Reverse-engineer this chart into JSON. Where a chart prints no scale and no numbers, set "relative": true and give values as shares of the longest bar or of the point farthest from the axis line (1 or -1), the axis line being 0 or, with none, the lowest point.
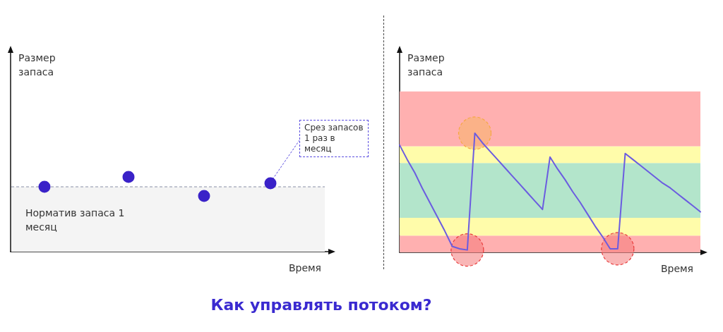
{
  "chart_data": [
    {
      "type": "other",
      "title": "Как управлять потоком?",
      "xlabel": "Время",
      "ylabel": "Размер запаса",
      "annotations": [
        "Норматив запаса 1 месяц",
        "Срез запасов 1 раз в месяц"
      ]
    },
    {
      "type": "line",
      "xlabel": "Время",
      "ylabel": "Размер запаса",
      "relative": true,
      "categories": [
        null,
        null,
        null,
        null,
        null,
        null,
        null,
        null,
        null,
        null,
        null,
        null,
        null,
        null,
        null,
        null,
        null,
        null,
        null,
        null,
        null,
        null,
        null,
        null,
        null,
        null,
        null,
        null,
        null,
        null,
        null,
        null,
        null,
        null,
        null,
        null,
        null,
        null,
        null,
        null,
        null
      ],
      "values": [
        0.9,
        0.78,
        0.67,
        0.54,
        0.42,
        0.3,
        0.18,
        0.05,
        0.03,
        0.02,
        1,
        0.92,
        0.85,
        0.78,
        0.71,
        0.64,
        0.57,
        0.5,
        0.43,
        0.36,
        0.8,
        0.7,
        0.61,
        0.51,
        0.42,
        0.32,
        0.22,
        0.13,
        0.03,
        0.03,
        0.83,
        0.78,
        0.73,
        0.68,
        0.63,
        0.58,
        0.54,
        0.49,
        0.44,
        0.39,
        0.34
      ],
      "color": "#6b5ce0",
      "bands": [
        {
          "axis": "y",
          "from": 0,
          "to": 0.14,
          "color": "#ffb0b0"
        },
        {
          "axis": "y",
          "from": 0.14,
          "to": 0.29,
          "color": "#fffcaa"
        },
        {
          "axis": "y",
          "from": 0.29,
          "to": 0.75,
          "color": "#b3e5cb"
        },
        {
          "axis": "y",
          "from": 0.75,
          "to": 0.89,
          "color": "#fffcaa"
        },
        {
          "axis": "y",
          "from": 0.89,
          "to": 1.35,
          "color": "#ffb0b0"
        }
      ]
    }
  ]
}
